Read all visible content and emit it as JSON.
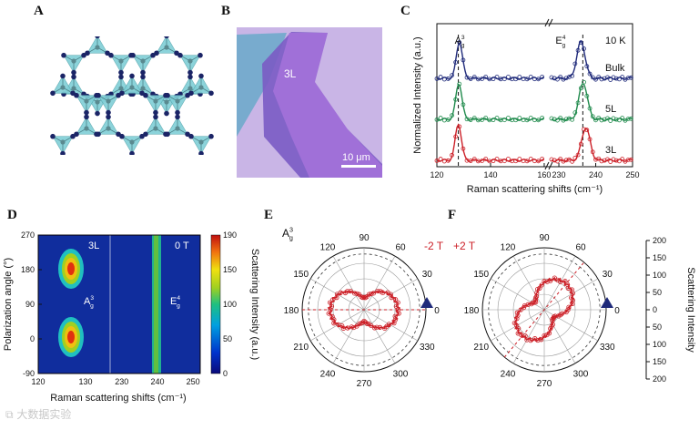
{
  "panels": {
    "A": {
      "label": "A"
    },
    "B": {
      "label": "B",
      "flake_label": "3L",
      "scale_bar": "10 μm"
    },
    "C": {
      "label": "C"
    },
    "D": {
      "label": "D"
    },
    "E": {
      "label": "E",
      "field": "-2 T",
      "mode_label": "A",
      "mode_sub": "g",
      "mode_sup": "3"
    },
    "F": {
      "label": "F",
      "field": "+2 T"
    }
  },
  "colors": {
    "bulk": "#1f2a7a",
    "5L": "#1f8a4c",
    "3L": "#cc2028",
    "lattice_tri": "#7fcfd6",
    "lattice_atom": "#1b2466",
    "lattice_center": "#5a8a90",
    "flake_bg": "#c9b5e6",
    "flake_3L": "#a070d8",
    "flake_substrate": "#6aa9c9"
  },
  "chart_data": [
    {
      "id": "C",
      "type": "line",
      "title": "",
      "xlabel": "Raman scattering shifts (cm⁻¹)",
      "ylabel": "Normalized Intensity (a.u.)",
      "x_ticks_left": [
        "120",
        "140",
        "160"
      ],
      "x_ticks_right": [
        "230",
        "240",
        "250"
      ],
      "x_range_left": [
        120,
        160
      ],
      "x_range_right": [
        228,
        250
      ],
      "annotation_temp": "10 K",
      "peak_A": {
        "base": "A",
        "sub": "g",
        "sup": "3",
        "pos": 128
      },
      "peak_E": {
        "base": "E",
        "sub": "g",
        "sup": "4",
        "pos": 236.5
      },
      "series": [
        {
          "name": "Bulk",
          "color": "#1f2a7a",
          "peaks": [
            {
              "x": 128.4,
              "h": 1.0
            },
            {
              "x": 236.0,
              "h": 1.0
            }
          ]
        },
        {
          "name": "5L",
          "color": "#1f8a4c",
          "peaks": [
            {
              "x": 128.2,
              "h": 1.0
            },
            {
              "x": 236.6,
              "h": 1.0
            }
          ]
        },
        {
          "name": "3L",
          "color": "#cc2028",
          "peaks": [
            {
              "x": 128.0,
              "h": 1.0
            },
            {
              "x": 237.3,
              "h": 0.9
            }
          ]
        }
      ]
    },
    {
      "id": "D",
      "type": "heatmap",
      "xlabel": "Raman scattering shifts (cm⁻¹)",
      "ylabel": "Polarization  angle (°)",
      "y_ticks": [
        "270",
        "180",
        "90",
        "0",
        "-90"
      ],
      "x_ticks_left": [
        "120",
        "130"
      ],
      "x_ticks_right": [
        "230",
        "240",
        "250"
      ],
      "text_3L": "3L",
      "text_field": "0 T",
      "label_A": {
        "base": "A",
        "sub": "g",
        "sup": "3"
      },
      "label_E": {
        "base": "E",
        "sub": "g",
        "sup": "4"
      },
      "colorbar_label": "Scattering Intensity (a.u.)",
      "colorbar_ticks": [
        "190",
        "150",
        "100",
        "50",
        "0"
      ],
      "colorbar_range": [
        0,
        190
      ]
    },
    {
      "id": "E",
      "type": "scatter",
      "subtype": "polar",
      "angle_ticks": [
        "90",
        "60",
        "30",
        "0",
        "330",
        "300",
        "270",
        "240",
        "210",
        "180",
        "150",
        "120"
      ],
      "lobe_axis_deg": 0,
      "lobe_ratio": 0.35
    },
    {
      "id": "F",
      "type": "scatter",
      "subtype": "polar",
      "angle_ticks": [
        "90",
        "60",
        "30",
        "0",
        "330",
        "300",
        "270",
        "240",
        "210",
        "180",
        "150",
        "120"
      ],
      "lobe_axis_deg": 50,
      "lobe_ratio": 0.35,
      "radial_label": "Scattering Intensity",
      "radial_ticks": [
        "200",
        "150",
        "100",
        "50",
        "0",
        "50",
        "100",
        "150",
        "200"
      ]
    }
  ]
}
